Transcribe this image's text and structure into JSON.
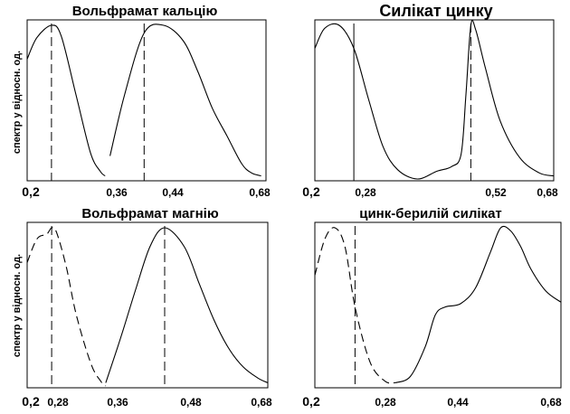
{
  "chart_data": [
    {
      "type": "line",
      "title": "Вольфрамат кальцію",
      "ylabel": "спектр у відносн. од.",
      "xlim": [
        0.2,
        0.69
      ],
      "ylim": [
        0,
        1
      ],
      "x_ticks": [
        "0,2",
        "0,36",
        "0,44",
        "0,68"
      ],
      "series": [
        {
          "style": "solid",
          "x": [
            0.2,
            0.22,
            0.25,
            0.27,
            0.3,
            0.33,
            0.35,
            0.36
          ],
          "y": [
            0.78,
            0.92,
            1.0,
            0.93,
            0.55,
            0.17,
            0.05,
            0.02
          ]
        },
        {
          "style": "solid",
          "x": [
            0.37,
            0.4,
            0.44,
            0.48,
            0.52,
            0.55,
            0.58,
            0.61,
            0.64,
            0.66,
            0.68
          ],
          "y": [
            0.15,
            0.55,
            0.95,
            1.0,
            0.9,
            0.7,
            0.46,
            0.28,
            0.1,
            0.04,
            0.02
          ]
        }
      ],
      "markers": [
        {
          "x": 0.25,
          "style": "dashed"
        },
        {
          "x": 0.44,
          "style": "dashed"
        }
      ]
    },
    {
      "type": "line",
      "title": "Силікат цинку",
      "ylabel": "",
      "xlim": [
        0.2,
        0.69
      ],
      "ylim": [
        0,
        1
      ],
      "x_ticks": [
        "0,2",
        "0,28",
        "0,52",
        "0,68"
      ],
      "series": [
        {
          "style": "solid",
          "x": [
            0.2,
            0.22,
            0.25,
            0.28,
            0.31,
            0.34,
            0.37,
            0.41,
            0.45,
            0.48,
            0.5,
            0.51,
            0.52,
            0.53,
            0.55,
            0.58,
            0.62,
            0.66,
            0.69
          ],
          "y": [
            0.85,
            0.98,
            1.0,
            0.85,
            0.52,
            0.21,
            0.06,
            0.0,
            0.05,
            0.08,
            0.16,
            0.55,
            1.0,
            0.97,
            0.72,
            0.38,
            0.14,
            0.04,
            0.02
          ]
        }
      ],
      "markers": [
        {
          "x": 0.28,
          "style": "solid"
        },
        {
          "x": 0.52,
          "style": "dashed"
        }
      ]
    },
    {
      "type": "line",
      "title": "Вольфрамат магнію",
      "ylabel": "спектр у відносн. од.",
      "xlim": [
        0.2,
        0.69
      ],
      "ylim": [
        0,
        1
      ],
      "x_ticks": [
        "0,2",
        "0,28",
        "0,36",
        "0,48",
        "0,68"
      ],
      "series": [
        {
          "style": "dashed",
          "x": [
            0.2,
            0.22,
            0.24,
            0.25,
            0.26,
            0.28,
            0.3,
            0.33,
            0.35,
            0.36
          ],
          "y": [
            0.78,
            0.93,
            0.96,
            1.0,
            0.97,
            0.75,
            0.45,
            0.14,
            0.03,
            0.0
          ]
        },
        {
          "style": "solid",
          "x": [
            0.36,
            0.39,
            0.42,
            0.45,
            0.48,
            0.52,
            0.55,
            0.58,
            0.61,
            0.64,
            0.67,
            0.69
          ],
          "y": [
            0.02,
            0.3,
            0.6,
            0.88,
            1.0,
            0.88,
            0.65,
            0.42,
            0.24,
            0.12,
            0.05,
            0.02
          ]
        }
      ],
      "markers": [
        {
          "x": 0.25,
          "style": "dashed"
        },
        {
          "x": 0.48,
          "style": "dashed"
        }
      ]
    },
    {
      "type": "line",
      "title": "цинк-берилій силікат",
      "ylabel": "",
      "xlim": [
        0.2,
        0.69
      ],
      "ylim": [
        0,
        1
      ],
      "x_ticks": [
        "0,2",
        "0,28",
        "0,44",
        "0,68"
      ],
      "series": [
        {
          "style": "dashed",
          "x": [
            0.2,
            0.22,
            0.24,
            0.26,
            0.28,
            0.31,
            0.34,
            0.36
          ],
          "y": [
            0.7,
            0.93,
            1.0,
            0.88,
            0.5,
            0.15,
            0.03,
            0.02
          ]
        },
        {
          "style": "solid",
          "x": [
            0.36,
            0.39,
            0.42,
            0.44,
            0.46,
            0.49,
            0.52,
            0.55,
            0.57,
            0.59,
            0.61,
            0.63,
            0.66,
            0.69
          ],
          "y": [
            0.02,
            0.06,
            0.25,
            0.45,
            0.5,
            0.52,
            0.62,
            0.85,
            1.0,
            0.98,
            0.88,
            0.74,
            0.6,
            0.53
          ]
        }
      ],
      "markers": [
        {
          "x": 0.28,
          "style": "dashed"
        }
      ]
    }
  ]
}
